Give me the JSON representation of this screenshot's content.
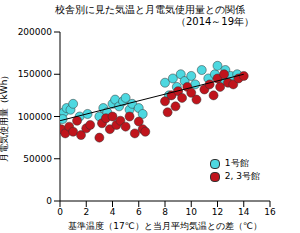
{
  "chart_data": {
    "type": "scatter",
    "title": "校舎別に見た気温と月電気使用量との関係",
    "subtitle": "（2014～19年）",
    "x_label": "基準温度（17℃）と当月平均気温との差（℃）",
    "y_label": "月電気使用量（kWh）",
    "xlim": [
      0,
      16
    ],
    "xticks": [
      0,
      2,
      4,
      6,
      8,
      10,
      12,
      14,
      16
    ],
    "ylim": [
      0,
      200000
    ],
    "yticks": [
      0,
      50000,
      100000,
      150000,
      200000
    ],
    "grid": false,
    "legend": "lower right",
    "marker": "circle",
    "series": [
      {
        "name": "1号館",
        "color": "#4dd8e0",
        "x": [
          0.1,
          0.3,
          0.5,
          0.8,
          0.2,
          1.0,
          1.5,
          2.1,
          3.0,
          3.3,
          3.6,
          4.0,
          4.2,
          4.5,
          4.8,
          5.0,
          5.3,
          5.5,
          6.0,
          6.3,
          8.0,
          8.3,
          8.6,
          8.9,
          9.2,
          9.5,
          10.0,
          10.3,
          10.8,
          11.3,
          11.8,
          12.0,
          12.3,
          12.6,
          13.0,
          13.5
        ],
        "values": [
          100000,
          105000,
          110000,
          108000,
          97000,
          115000,
          100000,
          103000,
          100000,
          110000,
          105000,
          115000,
          120000,
          112000,
          118000,
          122000,
          108000,
          115000,
          110000,
          103000,
          140000,
          125000,
          145000,
          135000,
          150000,
          142000,
          148000,
          138000,
          155000,
          145000,
          150000,
          160000,
          142000,
          155000,
          148000,
          150000
        ]
      },
      {
        "name": "2, 3号館",
        "color": "#c0141c",
        "x": [
          0.1,
          0.4,
          0.7,
          1.0,
          1.3,
          1.6,
          2.0,
          2.3,
          3.0,
          3.2,
          3.5,
          3.8,
          4.0,
          4.3,
          4.6,
          5.0,
          5.3,
          5.7,
          6.0,
          6.3,
          6.5,
          8.0,
          8.2,
          8.5,
          8.8,
          9.0,
          9.3,
          9.7,
          10.0,
          10.4,
          11.0,
          11.4,
          11.7,
          12.0,
          12.2,
          12.5,
          12.8,
          13.2,
          13.6,
          14.0
        ],
        "values": [
          85000,
          80000,
          88000,
          82000,
          95000,
          78000,
          86000,
          90000,
          75000,
          92000,
          98000,
          85000,
          100000,
          90000,
          95000,
          88000,
          100000,
          80000,
          94000,
          85000,
          82000,
          118000,
          105000,
          125000,
          112000,
          130000,
          122000,
          135000,
          128000,
          120000,
          132000,
          138000,
          125000,
          145000,
          135000,
          150000,
          140000,
          138000,
          145000,
          148000
        ]
      }
    ],
    "trend_line": {
      "x": [
        0,
        14
      ],
      "values": [
        95000,
        150000
      ]
    }
  }
}
